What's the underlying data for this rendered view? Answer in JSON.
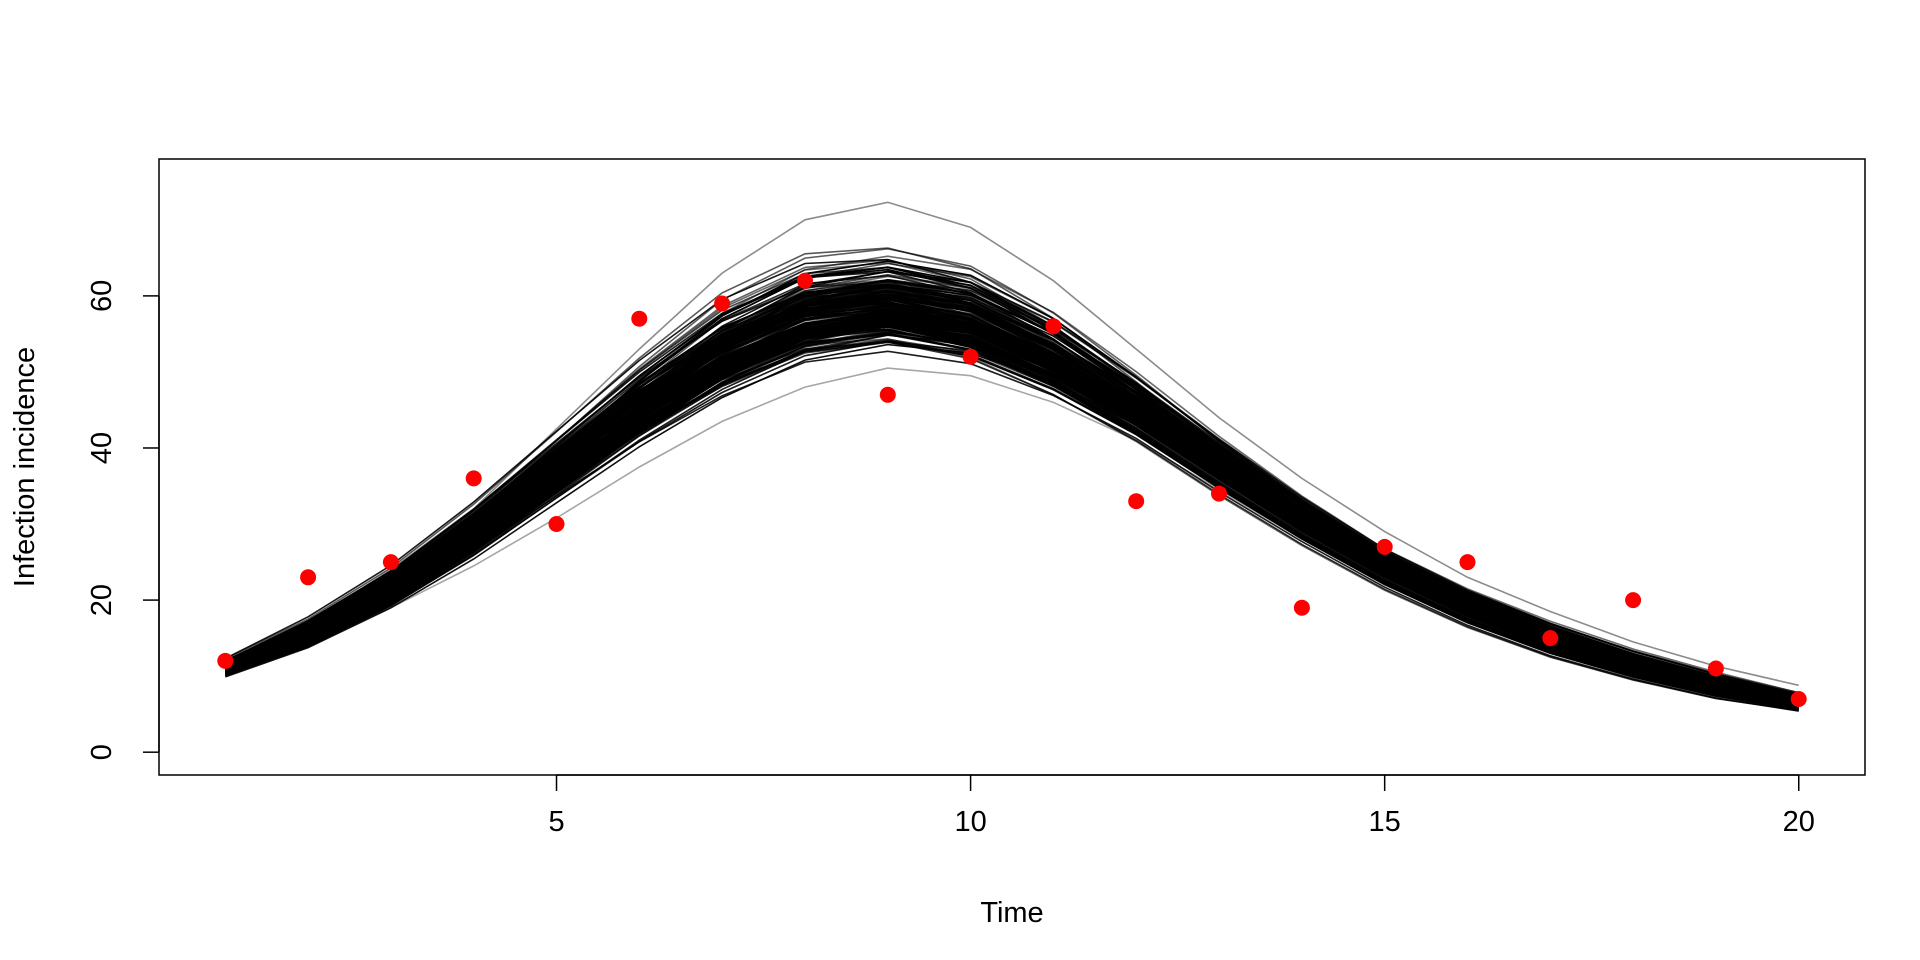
{
  "chart_data": {
    "type": "line",
    "title": "",
    "xlabel": "Time",
    "ylabel": "Infection incidence",
    "xlim": [
      0.2,
      20.8
    ],
    "ylim": [
      -3,
      78
    ],
    "x_ticks": [
      5,
      10,
      15,
      20
    ],
    "y_ticks": [
      0,
      20,
      40,
      60
    ],
    "grid": false,
    "legend": "none",
    "x": [
      1,
      2,
      3,
      4,
      5,
      6,
      7,
      8,
      9,
      10,
      11,
      12,
      13,
      14,
      15,
      16,
      17,
      18,
      19,
      20
    ],
    "series": [
      {
        "kind": "simulated trajectories (ensemble of black lines)",
        "color": "#000000",
        "count": 200,
        "median": [
          11.0,
          15.6,
          21.5,
          28.9,
          37.0,
          45.0,
          51.8,
          56.4,
          58.0,
          56.1,
          51.2,
          44.7,
          37.6,
          30.6,
          24.4,
          19.1,
          14.8,
          11.3,
          8.6,
          6.4
        ],
        "upper": [
          12.2,
          17.2,
          23.9,
          32.3,
          42.0,
          52.0,
          61.0,
          66.5,
          67.5,
          65.0,
          58.5,
          50.0,
          41.0,
          33.0,
          26.0,
          21.0,
          17.0,
          13.5,
          10.5,
          8.0
        ],
        "lower": [
          10.0,
          14.2,
          19.5,
          25.8,
          33.0,
          40.0,
          46.0,
          50.5,
          52.0,
          50.5,
          46.5,
          41.0,
          34.0,
          27.5,
          21.5,
          16.5,
          12.5,
          9.5,
          7.0,
          5.3
        ],
        "outlier_high": [
          12.0,
          17.0,
          24.0,
          32.0,
          42.5,
          53.0,
          63.0,
          70.0,
          72.3,
          69.0,
          62.0,
          53.0,
          44.0,
          36.0,
          29.0,
          23.0,
          18.5,
          14.5,
          11.3,
          8.8
        ],
        "outlier_low": [
          10.0,
          14.0,
          19.0,
          24.5,
          30.8,
          37.5,
          43.5,
          48.0,
          50.5,
          49.5,
          46.0,
          41.0,
          34.5,
          28.0,
          22.0,
          17.0,
          13.0,
          9.8,
          7.3,
          5.5
        ]
      },
      {
        "kind": "observed data (red points)",
        "color": "#ff0000",
        "values": [
          12,
          23,
          25,
          36,
          30,
          57,
          59,
          62,
          47,
          52,
          56,
          33,
          34,
          19,
          27,
          25,
          15,
          20,
          11,
          7
        ]
      }
    ]
  }
}
